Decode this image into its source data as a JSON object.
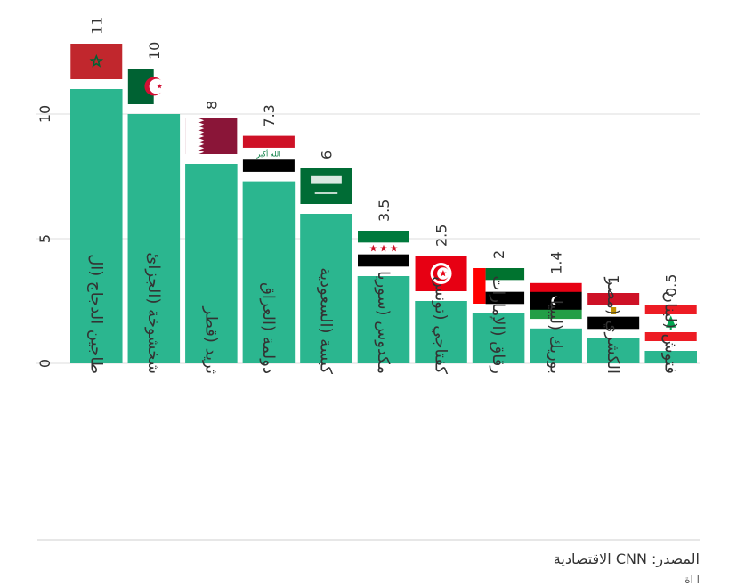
{
  "chart_data": {
    "type": "bar",
    "orientation": "vertical",
    "categories": [
      "طاجين الدجاج (ال",
      "شخشوخة (الجزائ",
      "ثريد (قطر",
      "دولمة (العراق",
      "كبسة (السعودية",
      "مكدوس (سوريا",
      "كفتاجي (تونس",
      "رقاق (الإمارات",
      "بوريك (ليبيا",
      "الكشري (مصر",
      "فتوش (لبنان"
    ],
    "values": [
      11,
      10,
      8,
      7.3,
      6,
      3.5,
      2.5,
      2,
      1.4,
      1,
      0.5
    ],
    "value_labels": [
      "11",
      "10",
      "8",
      "7.3",
      "6",
      "3.5",
      "2.5",
      "2",
      "1.4",
      "1",
      "0.5"
    ],
    "flags": [
      "morocco",
      "algeria",
      "qatar",
      "iraq",
      "saudi-arabia",
      "syria",
      "tunisia",
      "uae",
      "libya",
      "egypt",
      "lebanon"
    ],
    "yticks": [
      0,
      5,
      10
    ],
    "ytick_labels": [
      "0",
      "5",
      "10"
    ],
    "ylim": [
      0,
      13
    ],
    "grid": true,
    "bar_color": "#2bb68f",
    "grid_color": "#dddddd"
  },
  "footer": {
    "source": "المصدر: CNN الاقتصادية",
    "note": "ا اة"
  }
}
